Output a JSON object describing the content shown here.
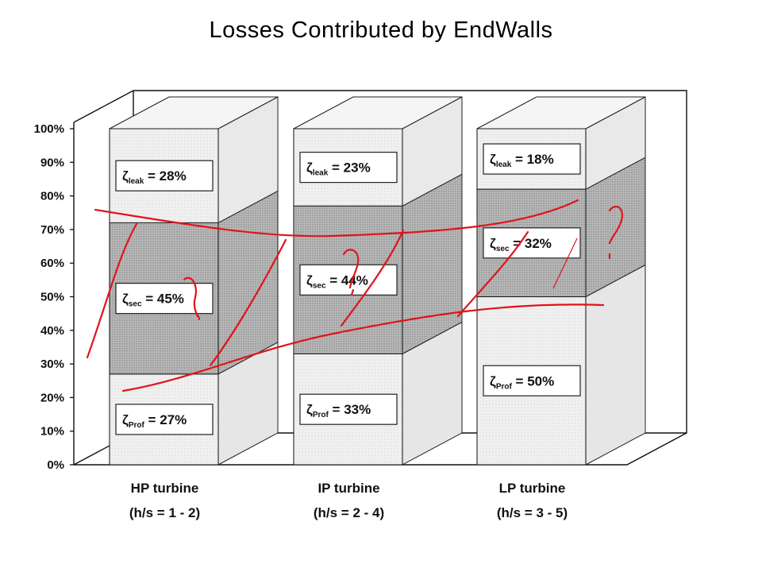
{
  "title": "Losses Contributed by EndWalls",
  "chart_data": {
    "type": "bar",
    "stacked": true,
    "three_d": true,
    "percent_axis": true,
    "ylim": [
      0,
      100
    ],
    "yticks": [
      "0%",
      "10%",
      "20%",
      "30%",
      "40%",
      "50%",
      "60%",
      "70%",
      "80%",
      "90%",
      "100%"
    ],
    "grid": false,
    "categories": [
      {
        "name": "HP turbine",
        "sub": "(h/s = 1 - 2)"
      },
      {
        "name": "IP turbine",
        "sub": "(h/s = 2 - 4)"
      },
      {
        "name": "LP turbine",
        "sub": "(h/s = 3 - 5)"
      }
    ],
    "series": [
      {
        "symbol": "ζ",
        "sub": "Prof",
        "values": [
          27,
          33,
          50
        ],
        "color": "#f1f1f1"
      },
      {
        "symbol": "ζ",
        "sub": "sec",
        "values": [
          45,
          44,
          32
        ],
        "color": "#b5b5b5"
      },
      {
        "symbol": "ζ",
        "sub": "leak",
        "values": [
          28,
          23,
          18
        ],
        "color": "#ebebeb"
      }
    ],
    "value_labels": [
      [
        "27%",
        "45%",
        "28%"
      ],
      [
        "33%",
        "44%",
        "23%"
      ],
      [
        "50%",
        "32%",
        "18%"
      ]
    ],
    "annotations": "red hand-drawn lines and question marks",
    "annotation_color": "#e0141a"
  }
}
